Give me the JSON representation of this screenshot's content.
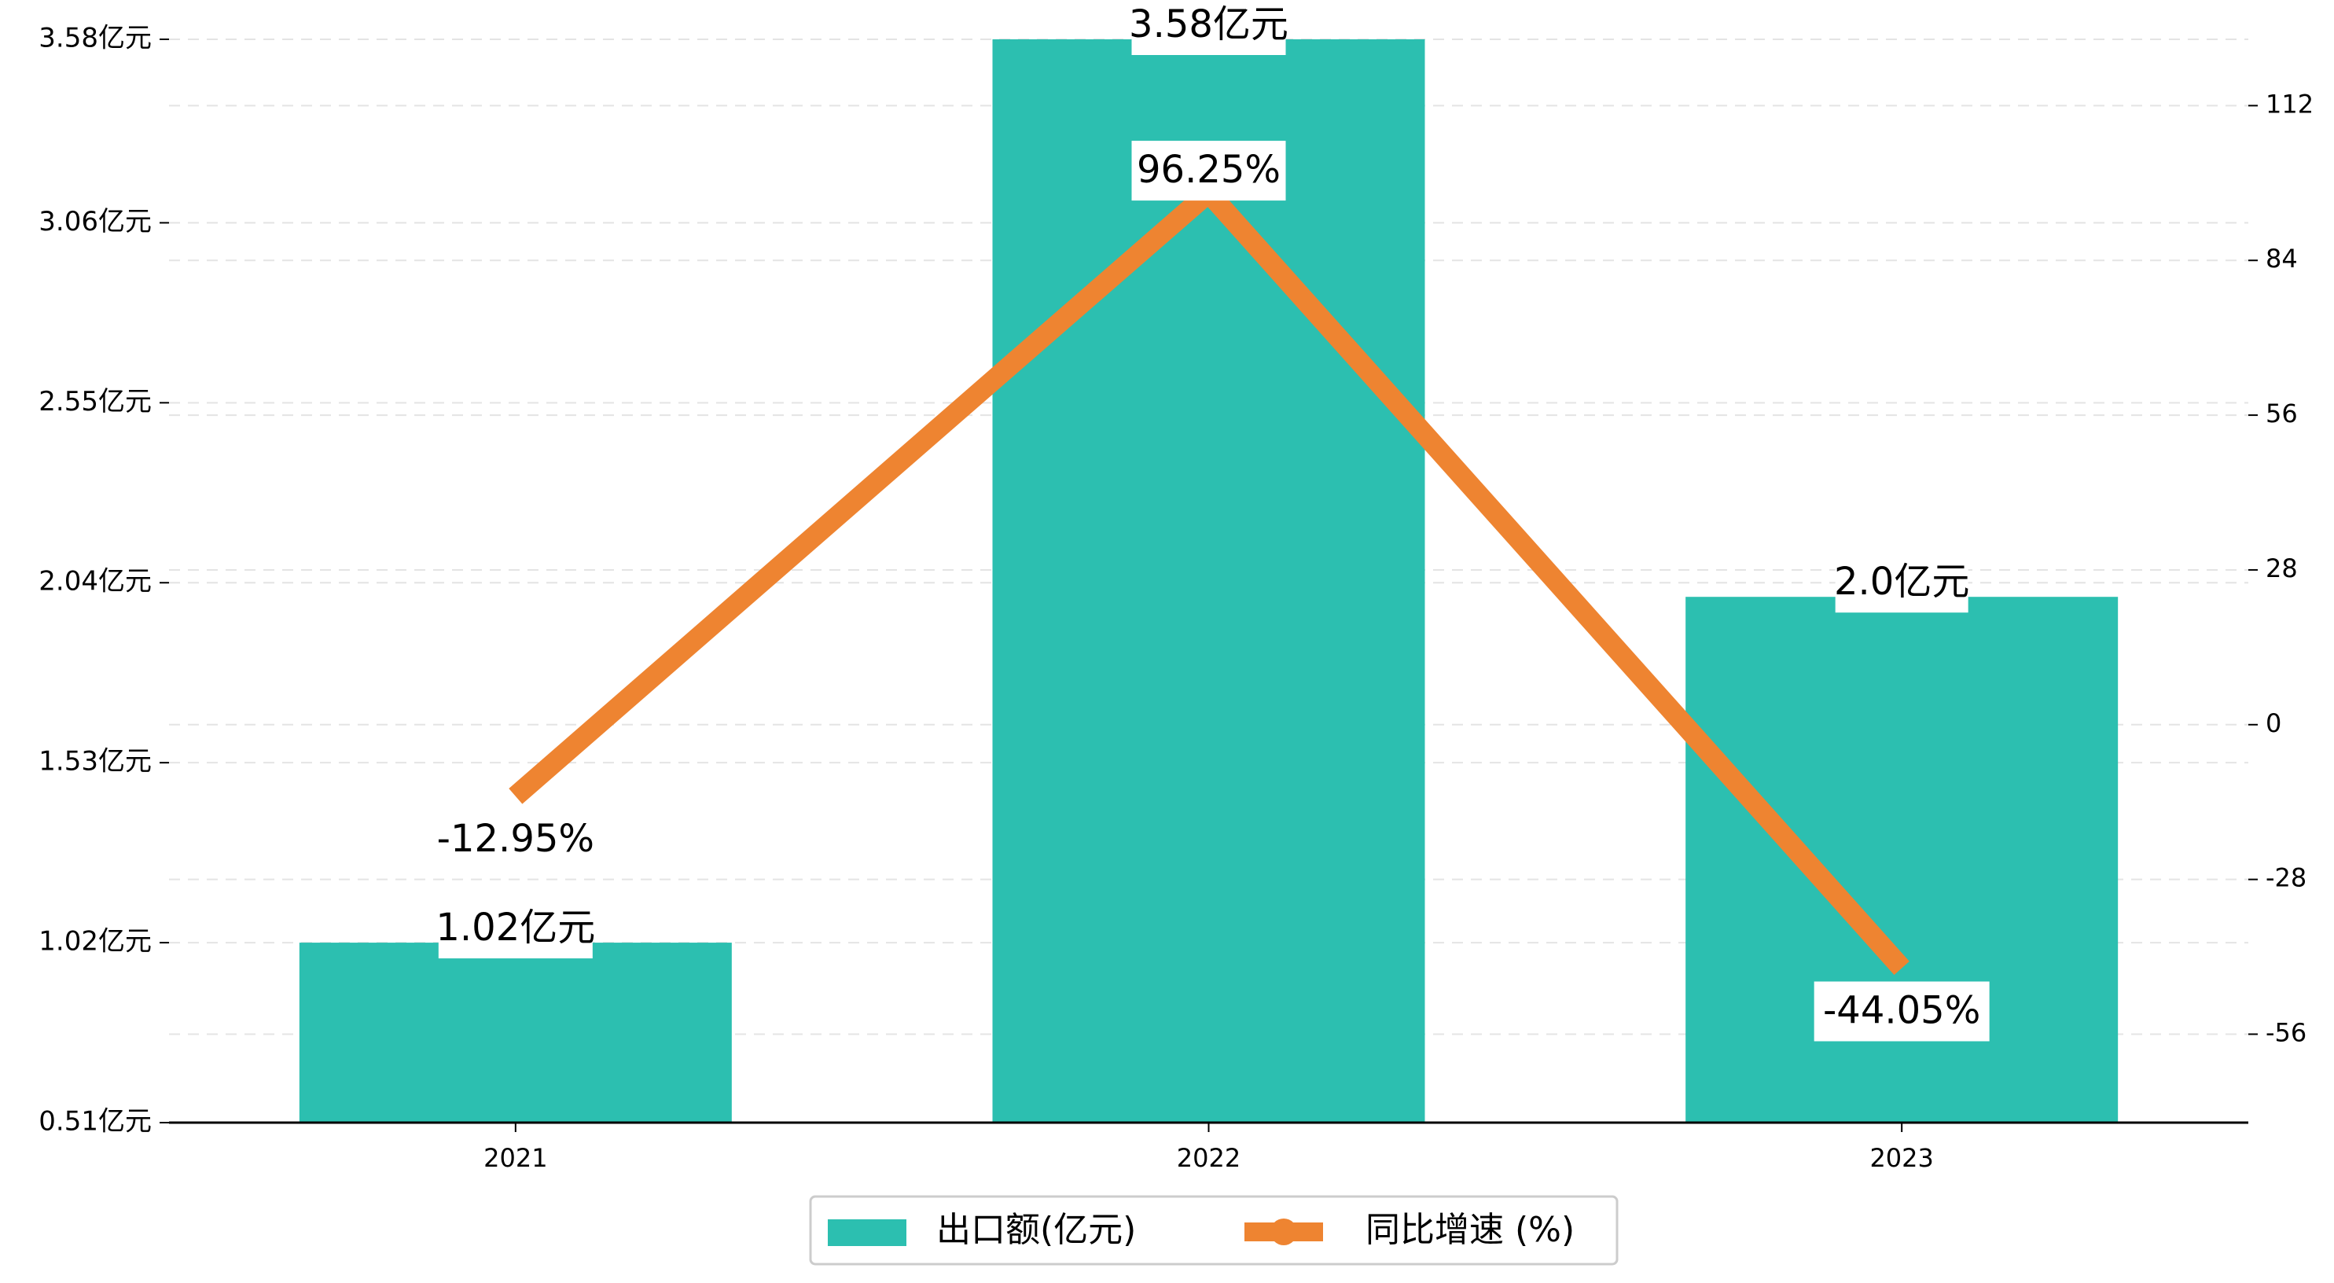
{
  "chart_data": {
    "type": "bar",
    "categories": [
      "2021",
      "2022",
      "2023"
    ],
    "series": [
      {
        "name": "出口额(亿元)",
        "type": "bar",
        "axis": "left",
        "color": "#2cbfb0",
        "values": [
          1.02,
          3.58,
          2.0
        ],
        "labels": [
          "1.02亿元",
          "3.58亿元",
          "2.0亿元"
        ]
      },
      {
        "name": "同比增速 (%)",
        "type": "line",
        "axis": "right",
        "color": "#ee8431",
        "values": [
          -12.95,
          96.25,
          -44.05
        ],
        "labels": [
          "-12.95%",
          "96.25%",
          "-44.05%"
        ]
      }
    ],
    "y_left": {
      "ticks": [
        0.51,
        1.02,
        1.53,
        2.04,
        2.55,
        3.06,
        3.58
      ],
      "tick_labels": [
        "0.51亿元",
        "1.02亿元",
        "1.53亿元",
        "2.04亿元",
        "2.55亿元",
        "3.06亿元",
        "3.58亿元"
      ],
      "ylim": [
        0.51,
        3.58
      ]
    },
    "y_right": {
      "ticks": [
        -56,
        -28,
        0,
        28,
        56,
        84,
        112
      ],
      "tick_labels": [
        "-56",
        "-28",
        "0",
        "28",
        "56",
        "84",
        "112"
      ],
      "ylim": [
        -72,
        124
      ]
    },
    "grid": "horizontal-dashed",
    "legend": "bottom-center"
  }
}
